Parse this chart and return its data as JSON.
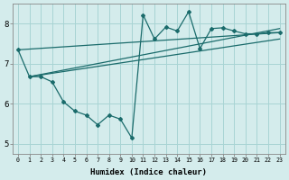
{
  "background_color": "#d4ecec",
  "grid_color": "#a8d4d4",
  "line_color": "#1a6b6b",
  "xlabel": "Humidex (Indice chaleur)",
  "xlim": [
    -0.5,
    23.5
  ],
  "ylim": [
    4.75,
    8.5
  ],
  "yticks": [
    5,
    6,
    7,
    8
  ],
  "xticks": [
    0,
    1,
    2,
    3,
    4,
    5,
    6,
    7,
    8,
    9,
    10,
    11,
    12,
    13,
    14,
    15,
    16,
    17,
    18,
    19,
    20,
    21,
    22,
    23
  ],
  "main_series": {
    "x": [
      0,
      1,
      2,
      3,
      4,
      5,
      6,
      7,
      8,
      9,
      10,
      11,
      12,
      13,
      14,
      15,
      16,
      17,
      18,
      19,
      20,
      21,
      22,
      23
    ],
    "y": [
      7.35,
      6.68,
      6.68,
      6.55,
      6.05,
      5.82,
      5.72,
      5.48,
      5.72,
      5.62,
      5.15,
      8.22,
      7.62,
      7.92,
      7.82,
      8.3,
      7.38,
      7.88,
      7.9,
      7.82,
      7.75,
      7.75,
      7.78,
      7.78
    ]
  },
  "line1": {
    "x": [
      0,
      23
    ],
    "y": [
      7.35,
      7.78
    ]
  },
  "line2": {
    "x": [
      1,
      23
    ],
    "y": [
      6.68,
      7.88
    ]
  },
  "line3": {
    "x": [
      1,
      23
    ],
    "y": [
      6.68,
      7.62
    ]
  }
}
